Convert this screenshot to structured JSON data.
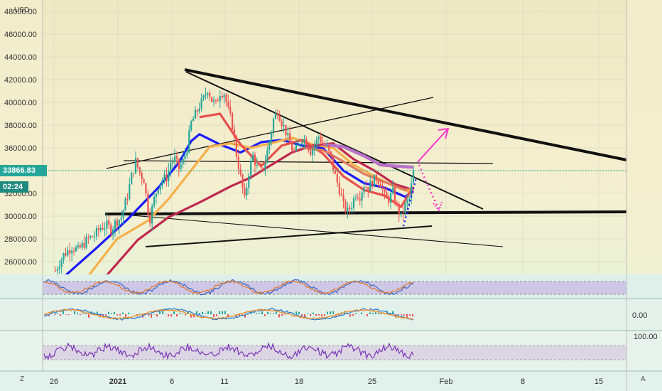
{
  "currency": "USD",
  "last_price": "33866.83",
  "countdown": "02:24",
  "macd_value": "0.00",
  "rsi_level": "100.00",
  "corner_left": "Z",
  "corner_right": "A",
  "colors": {
    "price_tag": "#26a69a",
    "countdown_tag": "#1f8a80",
    "ema_blue": "#1a1aff",
    "ema_orange": "#f5b04a",
    "ema_crimson": "#c0284e",
    "ma_purple": "#b873c9",
    "ma_red": "#e8504a",
    "ma_salmon": "#e07a5f",
    "arrow": "#ff33cc"
  },
  "chart_data": {
    "type": "candlestick",
    "title": "",
    "ylabel": "USD",
    "y_ticks": [
      "26000.00",
      "28000.00",
      "30000.00",
      "32000.00",
      "34000.00",
      "36000.00",
      "38000.00",
      "40000.00",
      "42000.00",
      "44000.00",
      "46000.00",
      "48000.00"
    ],
    "ylim": [
      25000,
      48500
    ],
    "x_ticks": [
      "26",
      "2021",
      "6",
      "11",
      "18",
      "25",
      "Feb",
      "8",
      "15"
    ],
    "price_path": [
      {
        "t": 0,
        "v": 25200
      },
      {
        "t": 4,
        "v": 26600
      },
      {
        "t": 8,
        "v": 27300
      },
      {
        "t": 11,
        "v": 27000
      },
      {
        "t": 13,
        "v": 27400
      },
      {
        "t": 16,
        "v": 28000
      },
      {
        "t": 19,
        "v": 28300
      },
      {
        "t": 22,
        "v": 29000
      },
      {
        "t": 25,
        "v": 29200
      },
      {
        "t": 27,
        "v": 28800
      },
      {
        "t": 29,
        "v": 29400
      },
      {
        "t": 32,
        "v": 29900
      },
      {
        "t": 35,
        "v": 31800
      },
      {
        "t": 37,
        "v": 33500
      },
      {
        "t": 39,
        "v": 34800
      },
      {
        "t": 41,
        "v": 33800
      },
      {
        "t": 43,
        "v": 33200
      },
      {
        "t": 45,
        "v": 30500
      },
      {
        "t": 46,
        "v": 29800
      },
      {
        "t": 48,
        "v": 31500
      },
      {
        "t": 50,
        "v": 32700
      },
      {
        "t": 52,
        "v": 33200
      },
      {
        "t": 54,
        "v": 33400
      },
      {
        "t": 56,
        "v": 34700
      },
      {
        "t": 58,
        "v": 35000
      },
      {
        "t": 60,
        "v": 34200
      },
      {
        "t": 62,
        "v": 34800
      },
      {
        "t": 64,
        "v": 36000
      },
      {
        "t": 66,
        "v": 38200
      },
      {
        "t": 68,
        "v": 38900
      },
      {
        "t": 70,
        "v": 39700
      },
      {
        "t": 72,
        "v": 40300
      },
      {
        "t": 74,
        "v": 41200
      },
      {
        "t": 76,
        "v": 40200
      },
      {
        "t": 78,
        "v": 39800
      },
      {
        "t": 80,
        "v": 40900
      },
      {
        "t": 82,
        "v": 40800
      },
      {
        "t": 84,
        "v": 39300
      },
      {
        "t": 86,
        "v": 38000
      },
      {
        "t": 88,
        "v": 35400
      },
      {
        "t": 90,
        "v": 33400
      },
      {
        "t": 92,
        "v": 31400
      },
      {
        "t": 94,
        "v": 33900
      },
      {
        "t": 96,
        "v": 35300
      },
      {
        "t": 98,
        "v": 34300
      },
      {
        "t": 100,
        "v": 33900
      },
      {
        "t": 102,
        "v": 34800
      },
      {
        "t": 104,
        "v": 36600
      },
      {
        "t": 106,
        "v": 38500
      },
      {
        "t": 108,
        "v": 39300
      },
      {
        "t": 110,
        "v": 38300
      },
      {
        "t": 112,
        "v": 37400
      },
      {
        "t": 114,
        "v": 36300
      },
      {
        "t": 116,
        "v": 35600
      },
      {
        "t": 118,
        "v": 36100
      },
      {
        "t": 120,
        "v": 37000
      },
      {
        "t": 122,
        "v": 36500
      },
      {
        "t": 124,
        "v": 35700
      },
      {
        "t": 126,
        "v": 36300
      },
      {
        "t": 128,
        "v": 37000
      },
      {
        "t": 130,
        "v": 36400
      },
      {
        "t": 132,
        "v": 36000
      },
      {
        "t": 134,
        "v": 35000
      },
      {
        "t": 136,
        "v": 33500
      },
      {
        "t": 138,
        "v": 32400
      },
      {
        "t": 140,
        "v": 30900
      },
      {
        "t": 142,
        "v": 30400
      },
      {
        "t": 144,
        "v": 31000
      },
      {
        "t": 146,
        "v": 32000
      },
      {
        "t": 148,
        "v": 31800
      },
      {
        "t": 150,
        "v": 32800
      },
      {
        "t": 152,
        "v": 32500
      },
      {
        "t": 154,
        "v": 33000
      },
      {
        "t": 156,
        "v": 33400
      },
      {
        "t": 158,
        "v": 32900
      },
      {
        "t": 160,
        "v": 31700
      },
      {
        "t": 162,
        "v": 31500
      },
      {
        "t": 164,
        "v": 32100
      },
      {
        "t": 166,
        "v": 30800
      },
      {
        "t": 168,
        "v": 29900
      },
      {
        "t": 170,
        "v": 30900
      },
      {
        "t": 172,
        "v": 31500
      },
      {
        "t": 174,
        "v": 33866
      }
    ],
    "t_range": [
      0,
      174
    ],
    "moving_averages": [
      {
        "color_key": "ema_blue",
        "points": [
          [
            0,
            24000
          ],
          [
            20,
            27200
          ],
          [
            35,
            29700
          ],
          [
            50,
            32500
          ],
          [
            60,
            34700
          ],
          [
            66,
            36600
          ],
          [
            70,
            37200
          ],
          [
            80,
            36300
          ],
          [
            90,
            35600
          ],
          [
            100,
            36500
          ],
          [
            110,
            36700
          ],
          [
            120,
            36200
          ],
          [
            130,
            36000
          ],
          [
            140,
            34000
          ],
          [
            150,
            32900
          ],
          [
            160,
            32500
          ],
          [
            170,
            31700
          ],
          [
            174,
            32200
          ]
        ]
      },
      {
        "color_key": "ema_orange",
        "points": [
          [
            15,
            24500
          ],
          [
            30,
            28000
          ],
          [
            45,
            29600
          ],
          [
            55,
            31500
          ],
          [
            65,
            33800
          ],
          [
            75,
            36100
          ],
          [
            85,
            36400
          ],
          [
            95,
            36000
          ],
          [
            105,
            36400
          ],
          [
            115,
            36900
          ],
          [
            125,
            36300
          ],
          [
            135,
            36000
          ],
          [
            145,
            34500
          ],
          [
            155,
            33500
          ],
          [
            165,
            32600
          ],
          [
            174,
            32000
          ]
        ]
      },
      {
        "color_key": "ema_crimson",
        "points": [
          [
            25,
            24800
          ],
          [
            40,
            27900
          ],
          [
            55,
            29900
          ],
          [
            70,
            31200
          ],
          [
            85,
            32600
          ],
          [
            95,
            33400
          ],
          [
            105,
            34500
          ],
          [
            115,
            35600
          ],
          [
            125,
            36200
          ],
          [
            135,
            36400
          ],
          [
            145,
            35000
          ],
          [
            155,
            34000
          ],
          [
            165,
            32800
          ],
          [
            174,
            32300
          ]
        ]
      },
      {
        "color_key": "ma_red",
        "points": [
          [
            70,
            38700
          ],
          [
            80,
            39000
          ],
          [
            90,
            36300
          ],
          [
            100,
            34400
          ],
          [
            110,
            36200
          ],
          [
            120,
            36700
          ],
          [
            130,
            35500
          ],
          [
            140,
            33500
          ],
          [
            150,
            32300
          ],
          [
            160,
            31800
          ],
          [
            168,
            30800
          ],
          [
            174,
            32600
          ]
        ]
      },
      {
        "color_key": "ma_purple",
        "points": [
          [
            130,
            36300
          ],
          [
            140,
            36100
          ],
          [
            150,
            35300
          ],
          [
            158,
            34500
          ],
          [
            165,
            34400
          ],
          [
            174,
            34300
          ]
        ]
      },
      {
        "color_key": "ma_salmon",
        "points": [
          [
            120,
            36000
          ],
          [
            130,
            35800
          ],
          [
            140,
            34800
          ],
          [
            150,
            33700
          ],
          [
            160,
            33000
          ],
          [
            170,
            32300
          ],
          [
            174,
            32500
          ]
        ]
      }
    ]
  }
}
